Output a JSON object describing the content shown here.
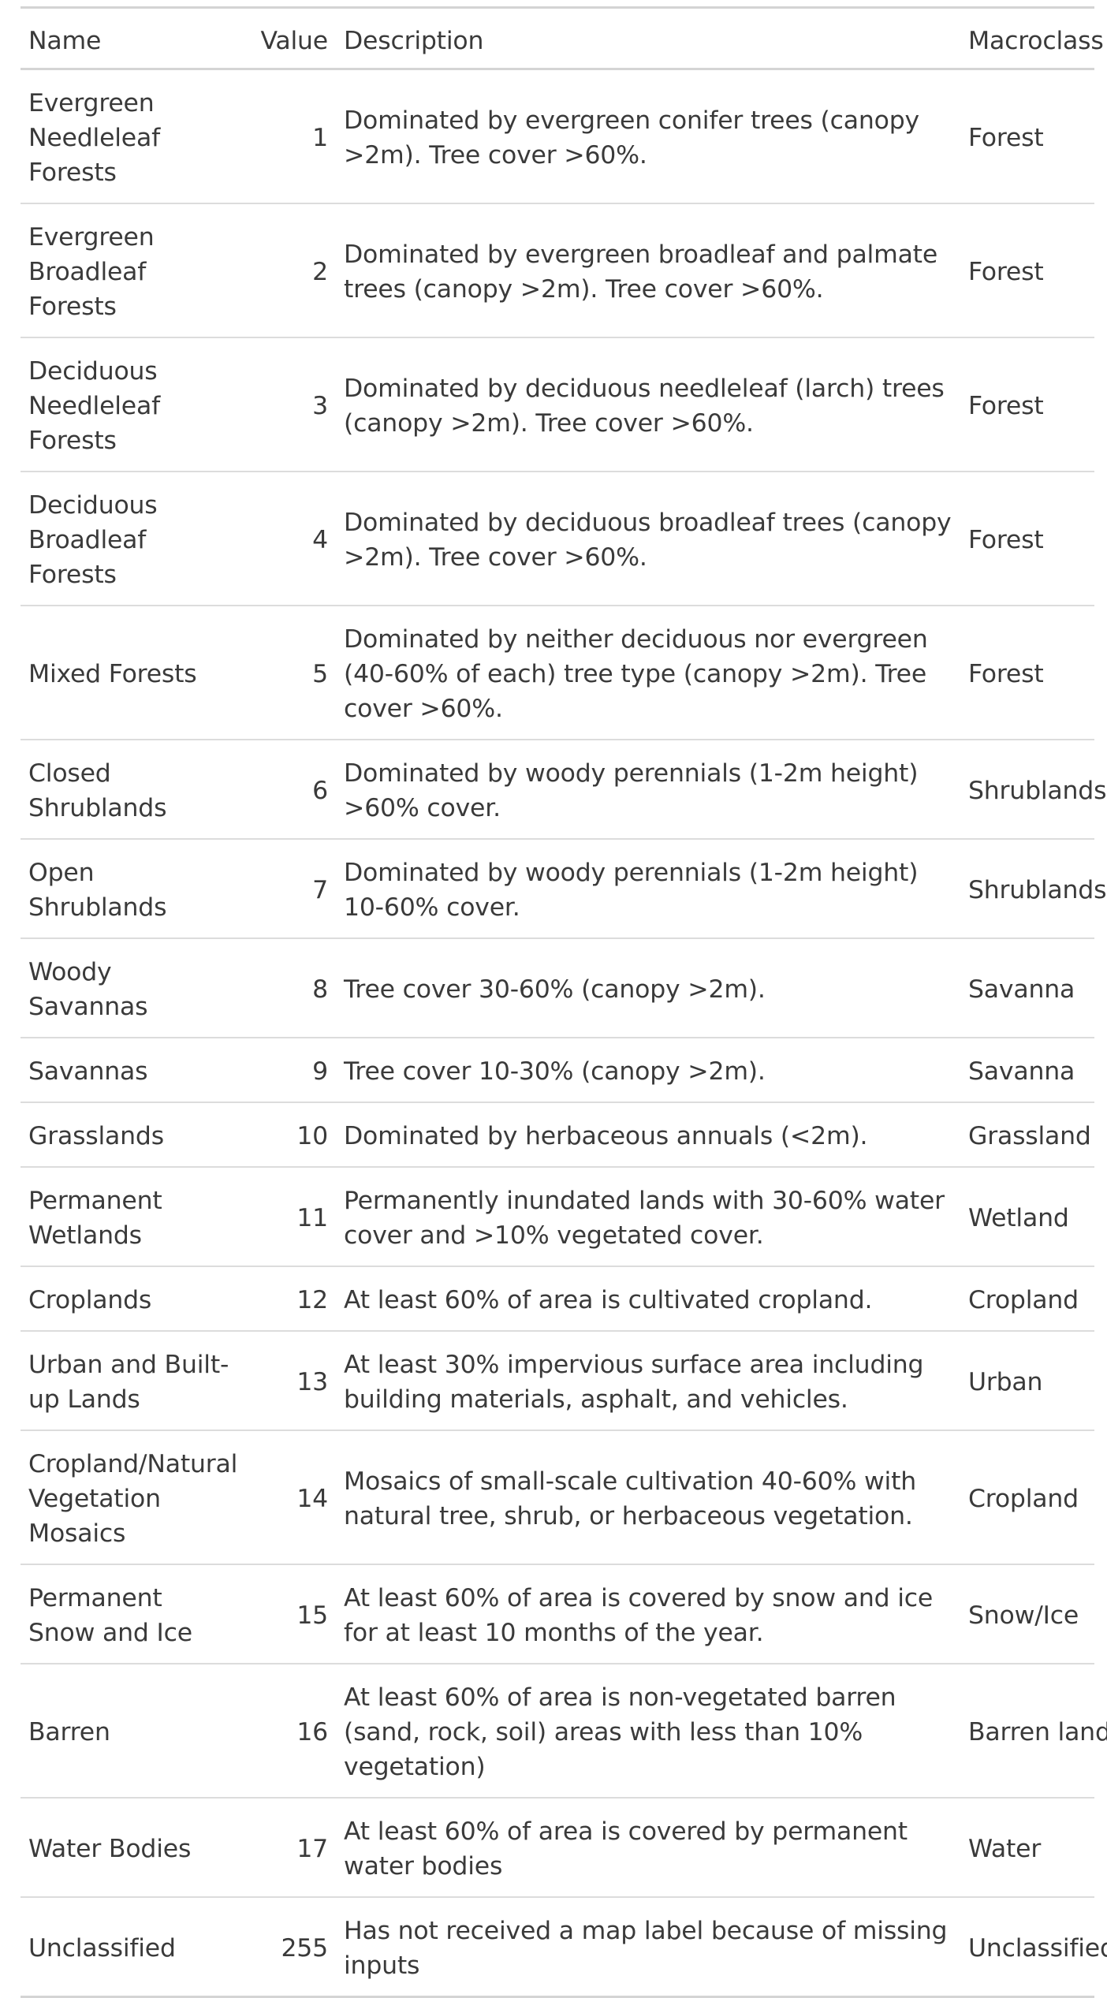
{
  "table": {
    "headers": {
      "name": "Name",
      "value": "Value",
      "description": "Description",
      "macroclass": "Macroclass"
    },
    "rows": [
      {
        "name": "Evergreen Needleleaf Forests",
        "value": "1",
        "description": "Dominated by evergreen conifer trees (canopy >2m). Tree cover >60%.",
        "macroclass": "Forest"
      },
      {
        "name": "Evergreen Broadleaf Forests",
        "value": "2",
        "description": "Dominated by evergreen broadleaf and palmate trees (canopy >2m). Tree cover >60%.",
        "macroclass": "Forest"
      },
      {
        "name": "Deciduous Needleleaf Forests",
        "value": "3",
        "description": "Dominated by deciduous needleleaf (larch) trees (canopy >2m). Tree cover >60%.",
        "macroclass": "Forest"
      },
      {
        "name": "Deciduous Broadleaf Forests",
        "value": "4",
        "description": "Dominated by deciduous broadleaf trees (canopy >2m). Tree cover >60%.",
        "macroclass": "Forest"
      },
      {
        "name": "Mixed Forests",
        "value": "5",
        "description": "Dominated by neither deciduous nor evergreen (40-60% of each) tree type (canopy >2m). Tree cover >60%.",
        "macroclass": "Forest"
      },
      {
        "name": "Closed Shrublands",
        "value": "6",
        "description": "Dominated by woody perennials (1-2m height) >60% cover.",
        "macroclass": "Shrublands"
      },
      {
        "name": "Open Shrublands",
        "value": "7",
        "description": "Dominated by woody perennials (1-2m height) 10-60% cover.",
        "macroclass": "Shrublands"
      },
      {
        "name": "Woody Savannas",
        "value": "8",
        "description": "Tree cover 30-60% (canopy >2m).",
        "macroclass": "Savanna"
      },
      {
        "name": "Savannas",
        "value": "9",
        "description": "Tree cover 10-30% (canopy >2m).",
        "macroclass": "Savanna"
      },
      {
        "name": "Grasslands",
        "value": "10",
        "description": "Dominated by herbaceous annuals (<2m).",
        "macroclass": "Grassland"
      },
      {
        "name": "Permanent Wetlands",
        "value": "11",
        "description": "Permanently inundated lands with 30-60% water cover and >10% vegetated cover.",
        "macroclass": "Wetland"
      },
      {
        "name": "Croplands",
        "value": "12",
        "description": "At least 60% of area is cultivated cropland.",
        "macroclass": "Cropland"
      },
      {
        "name": "Urban and Built-up Lands",
        "value": "13",
        "description": "At least 30% impervious surface area including building materials, asphalt, and vehicles.",
        "macroclass": "Urban"
      },
      {
        "name": "Cropland/Natural Vegetation Mosaics",
        "value": "14",
        "description": "Mosaics of small-scale cultivation 40-60% with natural tree, shrub, or herbaceous vegetation.",
        "macroclass": "Cropland"
      },
      {
        "name": "Permanent Snow and Ice",
        "value": "15",
        "description": "At least 60% of area is covered by snow and ice for at least 10 months of the year.",
        "macroclass": "Snow/Ice"
      },
      {
        "name": "Barren",
        "value": "16",
        "description": "At least 60% of area is non-vegetated barren (sand, rock, soil) areas with less than 10% vegetation)",
        "macroclass": "Barren land"
      },
      {
        "name": "Water Bodies",
        "value": "17",
        "description": "At least 60% of area is covered by permanent water bodies",
        "macroclass": "Water"
      },
      {
        "name": "Unclassified",
        "value": "255",
        "description": "Has not received a map label because of missing inputs",
        "macroclass": "Unclassified"
      }
    ]
  }
}
